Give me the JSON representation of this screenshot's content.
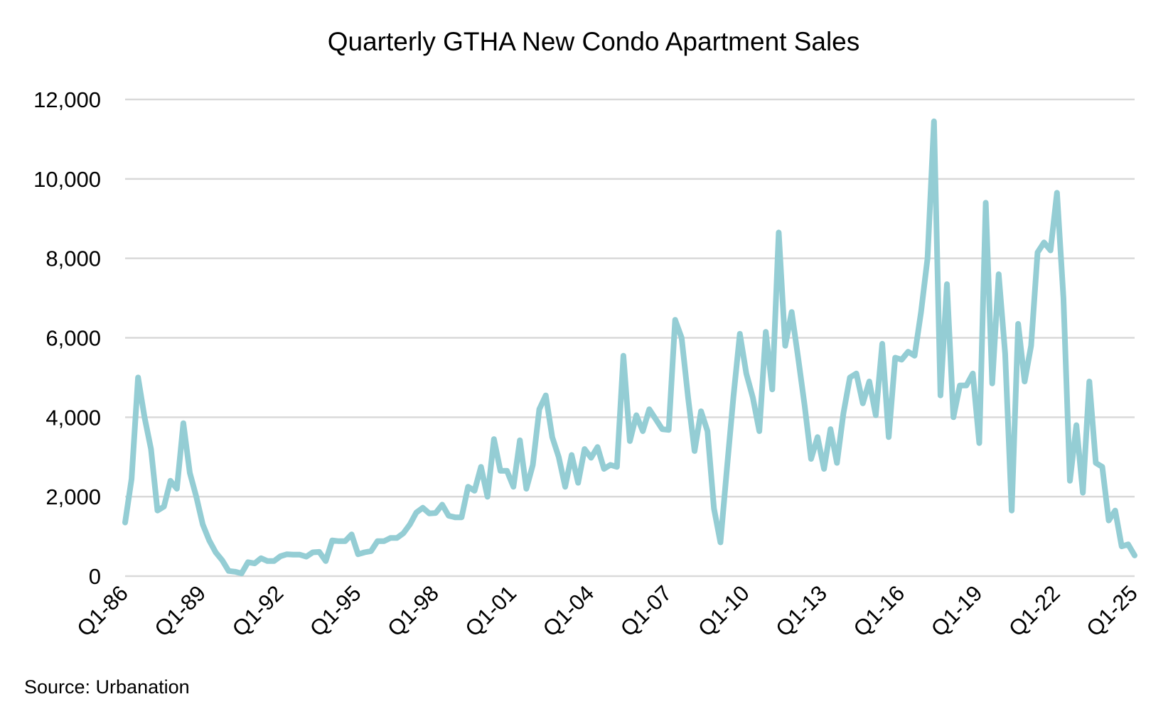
{
  "chart_data": {
    "type": "line",
    "title": "Quarterly GTHA New Condo Apartment Sales",
    "xlabel": "",
    "ylabel": "",
    "ylim": [
      0,
      12000
    ],
    "yticks": [
      0,
      2000,
      4000,
      6000,
      8000,
      10000,
      12000
    ],
    "ytick_labels": [
      "0",
      "2,000",
      "4,000",
      "6,000",
      "8,000",
      "10,000",
      "12,000"
    ],
    "xtick_labels": [
      "Q1-86",
      "Q1-89",
      "Q1-92",
      "Q1-95",
      "Q1-98",
      "Q1-01",
      "Q1-04",
      "Q1-07",
      "Q1-10",
      "Q1-13",
      "Q1-16",
      "Q1-19",
      "Q1-22",
      "Q1-25"
    ],
    "x_start": "Q1-86",
    "x_end": "Q1-25",
    "grid": true,
    "line_color": "#94cdd4",
    "grid_color": "#d9d9d9",
    "series": [
      {
        "name": "GTHA New Condo Apartment Sales",
        "values": [
          1350,
          2450,
          5000,
          4000,
          3200,
          1650,
          1750,
          2400,
          2200,
          3850,
          2600,
          2000,
          1300,
          900,
          600,
          400,
          130,
          110,
          70,
          350,
          320,
          450,
          380,
          380,
          500,
          550,
          540,
          540,
          490,
          600,
          610,
          380,
          900,
          880,
          880,
          1050,
          550,
          600,
          630,
          880,
          880,
          960,
          960,
          1080,
          1300,
          1600,
          1720,
          1580,
          1590,
          1800,
          1520,
          1480,
          1480,
          2250,
          2150,
          2750,
          2000,
          3450,
          2650,
          2650,
          2250,
          3420,
          2200,
          2800,
          4200,
          4550,
          3500,
          3000,
          2250,
          3050,
          2350,
          3200,
          2980,
          3250,
          2700,
          2800,
          2750,
          5550,
          3400,
          4050,
          3650,
          4200,
          3950,
          3700,
          3680,
          6450,
          6000,
          4500,
          3150,
          4150,
          3650,
          1700,
          850,
          2700,
          4500,
          6100,
          5100,
          4500,
          3650,
          6150,
          4700,
          8650,
          5800,
          6650,
          5500,
          4300,
          2950,
          3500,
          2700,
          3700,
          2850,
          4100,
          5000,
          5100,
          4350,
          4900,
          4050,
          5850,
          3500,
          5500,
          5450,
          5650,
          5550,
          6650,
          8000,
          11450,
          4550,
          7350,
          4000,
          4800,
          4800,
          5100,
          3350,
          9400,
          4850,
          7600,
          5600,
          1650,
          6350,
          4900,
          5800,
          8150,
          8400,
          8200,
          9650,
          7000,
          2400,
          3800,
          2100,
          4900,
          2850,
          2750,
          1400,
          1650,
          750,
          800,
          520
        ]
      }
    ]
  },
  "source_text": "Source:  Urbanation"
}
